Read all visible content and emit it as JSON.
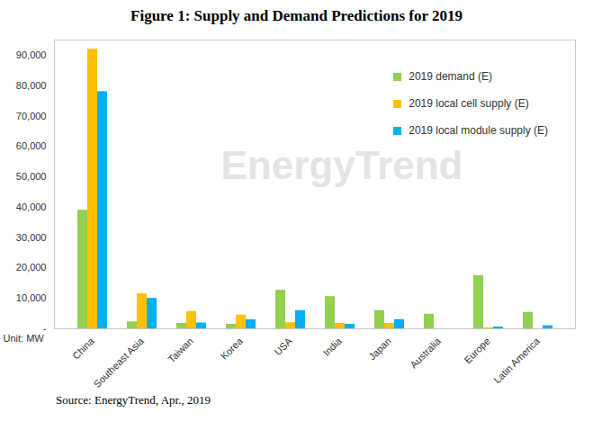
{
  "chart_data": {
    "type": "bar",
    "title": "Figure 1: Supply and Demand Predictions for 2019",
    "y_label": "Unit: MW",
    "source": "Source: EnergyTrend, Apr., 2019",
    "watermark": "EnergyTrend",
    "categories": [
      "China",
      "Southeast Asia",
      "Taiwan",
      "Korea",
      "USA",
      "India",
      "Japan",
      "Australia",
      "Europe",
      "Latin America"
    ],
    "series": [
      {
        "name": "2019 demand (E)",
        "color": "#92d050",
        "values": [
          39000,
          2300,
          1800,
          1500,
          12700,
          10600,
          6000,
          4800,
          17500,
          5400
        ]
      },
      {
        "name": "2019 local cell supply (E)",
        "color": "#ffc000",
        "values": [
          92000,
          11500,
          5700,
          4500,
          2000,
          1800,
          1800,
          0,
          300,
          0
        ]
      },
      {
        "name": "2019 local module supply (E)",
        "color": "#00b0f0",
        "values": [
          78000,
          10000,
          1900,
          3000,
          6000,
          1500,
          3000,
          0,
          600,
          1000
        ]
      }
    ],
    "ylim": [
      0,
      95000
    ],
    "yticks": [
      {
        "value": 0,
        "label": "-"
      },
      {
        "value": 10000,
        "label": "10,000"
      },
      {
        "value": 20000,
        "label": "20,000"
      },
      {
        "value": 30000,
        "label": "30,000"
      },
      {
        "value": 40000,
        "label": "40,000"
      },
      {
        "value": 50000,
        "label": "50,000"
      },
      {
        "value": 60000,
        "label": "60,000"
      },
      {
        "value": 70000,
        "label": "70,000"
      },
      {
        "value": 80000,
        "label": "80,000"
      },
      {
        "value": 90000,
        "label": "90,000"
      }
    ],
    "grid": false,
    "legend": "upper right"
  }
}
